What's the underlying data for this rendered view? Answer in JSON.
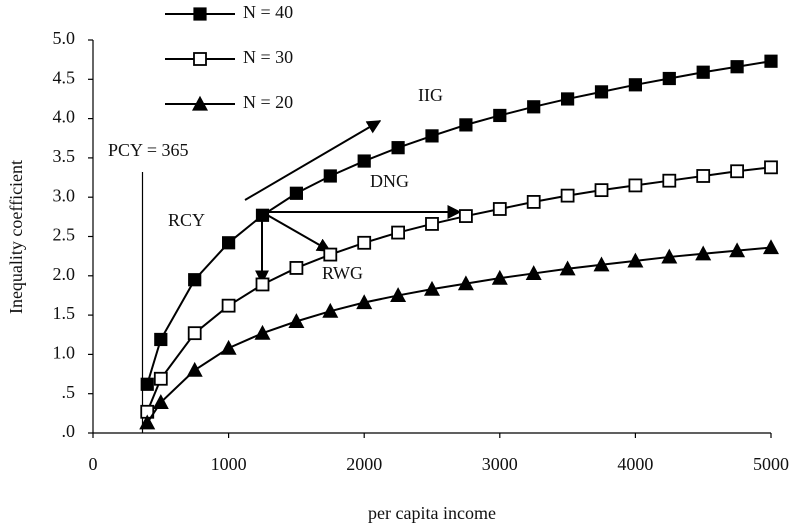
{
  "chart_data": {
    "type": "line",
    "x_label": "per capita income",
    "y_label": "Inequality coefficient",
    "x": [
      400,
      500,
      750,
      1000,
      1250,
      1500,
      1750,
      2000,
      2250,
      2500,
      2750,
      3000,
      3250,
      3500,
      3750,
      4000,
      4250,
      4500,
      4750,
      5000
    ],
    "series": [
      {
        "name": "N = 40",
        "color": "#000000",
        "marker": "square-filled",
        "values": [
          0.62,
          1.19,
          1.95,
          2.42,
          2.77,
          3.05,
          3.27,
          3.46,
          3.63,
          3.78,
          3.92,
          4.04,
          4.15,
          4.25,
          4.34,
          4.43,
          4.51,
          4.59,
          4.66,
          4.73
        ]
      },
      {
        "name": "N = 30",
        "color": "#000000",
        "marker": "square-open",
        "values": [
          0.27,
          0.69,
          1.27,
          1.62,
          1.89,
          2.1,
          2.27,
          2.42,
          2.55,
          2.66,
          2.76,
          2.85,
          2.94,
          3.02,
          3.09,
          3.15,
          3.21,
          3.27,
          3.33,
          3.38
        ]
      },
      {
        "name": "N = 20",
        "color": "#000000",
        "marker": "triangle-filled",
        "values": [
          0.13,
          0.39,
          0.8,
          1.08,
          1.27,
          1.42,
          1.55,
          1.66,
          1.75,
          1.83,
          1.9,
          1.97,
          2.03,
          2.09,
          2.14,
          2.19,
          2.24,
          2.28,
          2.32,
          2.36
        ]
      }
    ],
    "xlim": [
      0,
      5000
    ],
    "xticks": [
      0,
      1000,
      2000,
      3000,
      4000,
      5000
    ],
    "ylim": [
      0,
      5
    ],
    "yticks": [
      {
        "value": 0,
        "label": ".0"
      },
      {
        "value": 0.5,
        "label": ".5"
      },
      {
        "value": 1,
        "label": "1.0"
      },
      {
        "value": 1.5,
        "label": "1.5"
      },
      {
        "value": 2,
        "label": "2.0"
      },
      {
        "value": 2.5,
        "label": "2.5"
      },
      {
        "value": 3,
        "label": "3.0"
      },
      {
        "value": 3.5,
        "label": "3.5"
      },
      {
        "value": 4,
        "label": "4.0"
      },
      {
        "value": 4.5,
        "label": "4.5"
      },
      {
        "value": 5,
        "label": "5.0"
      }
    ],
    "grid": false,
    "legend": "top-left",
    "annotations": [
      "PCY = 365",
      "IIG",
      "RCY",
      "DNG",
      "RWG"
    ]
  }
}
